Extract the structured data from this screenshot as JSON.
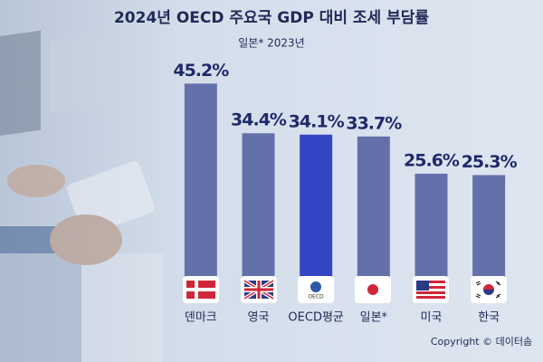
{
  "chart_data": {
    "type": "bar",
    "title": "2024년 OECD 주요국 GDP 대비 조세 부담률",
    "subtitle": "일본* 2023년",
    "categories": [
      "덴마크",
      "영국",
      "OECD평균",
      "일본*",
      "미국",
      "한국"
    ],
    "values": [
      45.2,
      34.4,
      34.1,
      33.7,
      25.6,
      25.3
    ],
    "value_labels": [
      "45.2%",
      "34.4%",
      "34.1%",
      "33.7%",
      "25.6%",
      "25.3%"
    ],
    "colors": [
      "#6470aa",
      "#6470aa",
      "#3446c6",
      "#6470aa",
      "#6470aa",
      "#6470aa"
    ],
    "ylim": [
      0,
      50
    ],
    "copyright": "Copyright © 데이터솜"
  }
}
